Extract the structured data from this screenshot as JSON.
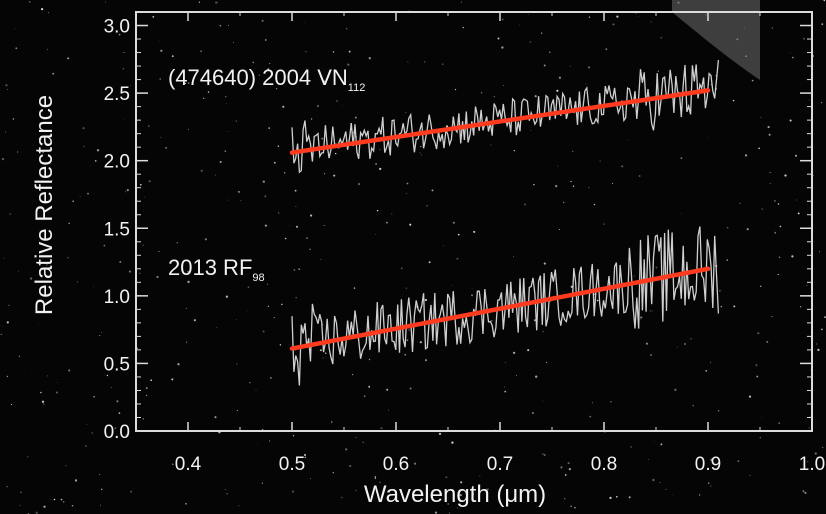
{
  "chart_data": {
    "type": "line",
    "title": "",
    "xlabel": "Wavelength (μm)",
    "ylabel": "Relative Reflectance",
    "xlim": [
      0.35,
      1.0
    ],
    "ylim": [
      0.0,
      3.1
    ],
    "x_ticks": [
      "0.4",
      "0.5",
      "0.6",
      "0.7",
      "0.8",
      "0.9",
      "1.0"
    ],
    "y_ticks": [
      "0.0",
      "0.5",
      "1.0",
      "1.5",
      "2.0",
      "2.5",
      "3.0"
    ],
    "grid": false,
    "legend": "none",
    "colors": {
      "background": "#050505",
      "spectrum": "#e6e6e6",
      "fit": "#ff3b1f",
      "axes": "#dcdcdc"
    },
    "series": [
      {
        "label_main": "(474640) 2004 VN",
        "label_sub": "112",
        "kind": "spectrum",
        "x_range": [
          0.5,
          0.91
        ],
        "mean_start": 2.08,
        "mean_end": 2.52,
        "scatter": 0.15
      },
      {
        "label_main": "2013 RF",
        "label_sub": "98",
        "kind": "spectrum",
        "x_range": [
          0.5,
          0.91
        ],
        "mean_start": 0.62,
        "mean_end": 1.2,
        "scatter": 0.22
      }
    ],
    "fits": [
      {
        "x": [
          0.5,
          0.9
        ],
        "y": [
          2.06,
          2.52
        ]
      },
      {
        "x": [
          0.5,
          0.9
        ],
        "y": [
          0.61,
          1.2
        ]
      }
    ]
  }
}
